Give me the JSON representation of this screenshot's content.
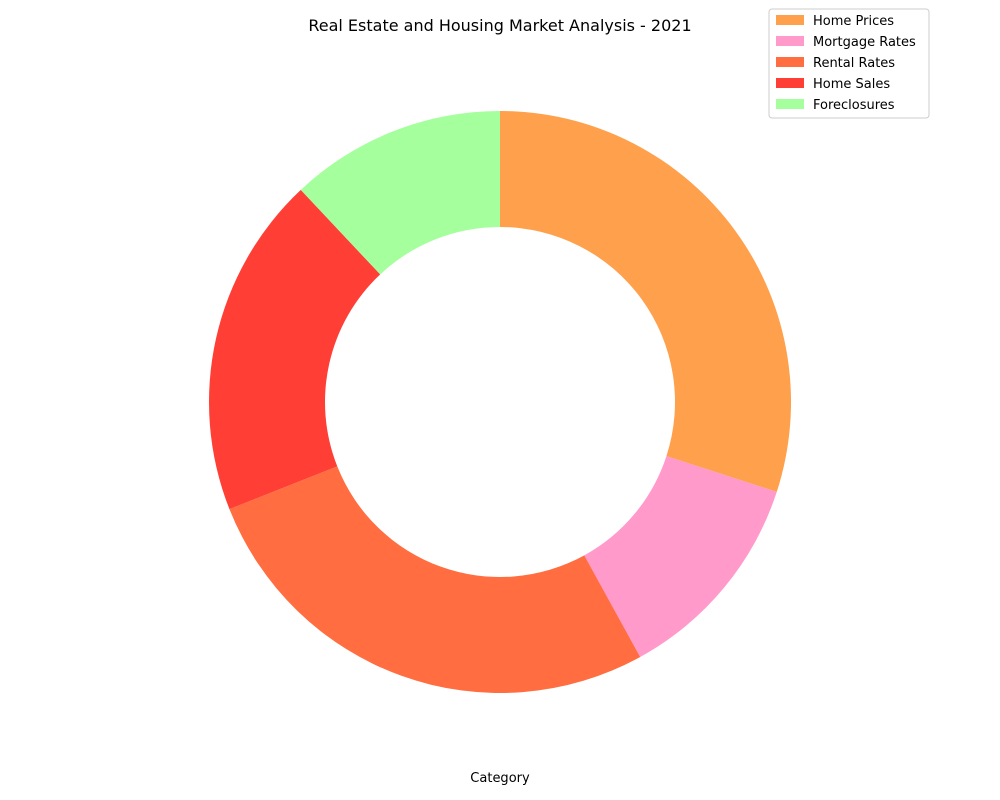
{
  "chart_data": {
    "type": "pie",
    "variant": "donut",
    "title": "Real Estate and Housing Market Analysis - 2021",
    "xlabel": "Category",
    "categories": [
      "Home Prices",
      "Mortgage Rates",
      "Rental Rates",
      "Home Sales",
      "Foreclosures"
    ],
    "values": [
      30,
      12,
      27,
      19,
      12
    ],
    "colors": [
      "#FFA04C",
      "#FF9ACA",
      "#FF6D40",
      "#FF3F36",
      "#A4FF9C"
    ],
    "start_angle": "12 o'clock",
    "direction": "clockwise",
    "legend_position": "top-right"
  }
}
